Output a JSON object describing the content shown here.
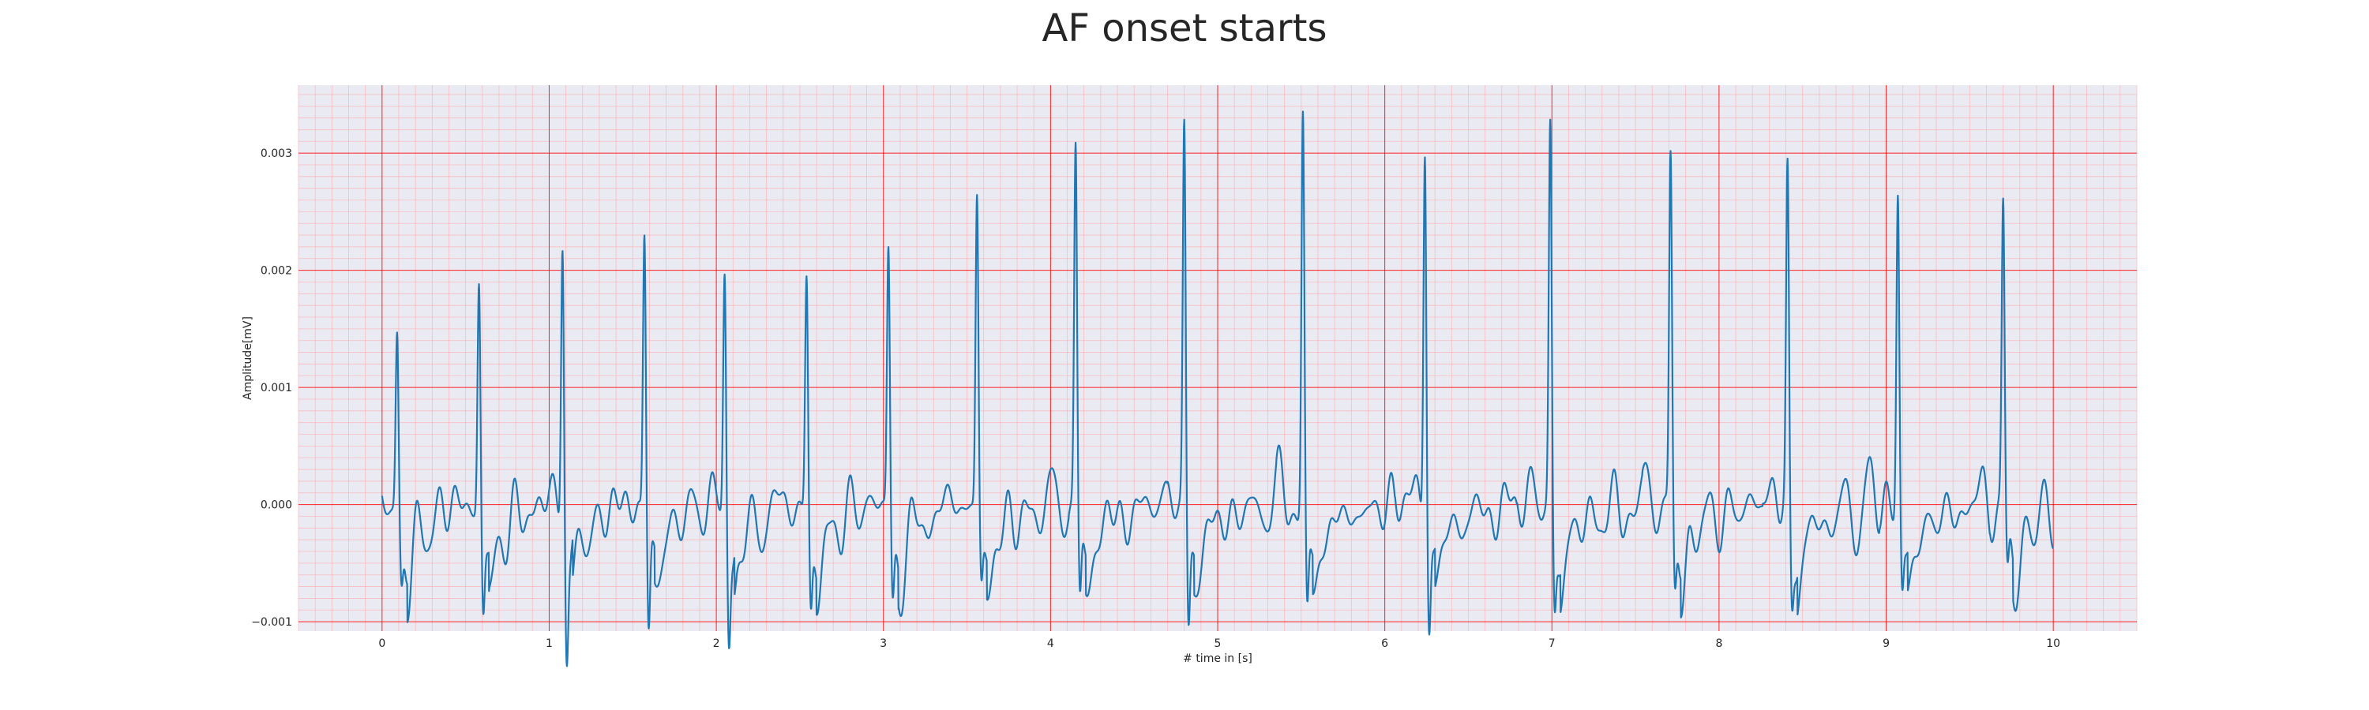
{
  "chart_data": {
    "type": "line",
    "title": "AF onset starts",
    "xlabel": "# time in [s]",
    "ylabel": "Amplitude[mV]",
    "xlim": [
      -0.5,
      10.5
    ],
    "ylim": [
      -0.00108,
      0.00358
    ],
    "x_ticks": [
      0,
      1,
      2,
      3,
      4,
      5,
      6,
      7,
      8,
      9,
      10
    ],
    "x_tick_labels": [
      "0",
      "1",
      "2",
      "3",
      "4",
      "5",
      "6",
      "7",
      "8",
      "9",
      "10"
    ],
    "y_ticks": [
      -0.001,
      0.0,
      0.001,
      0.002,
      0.003
    ],
    "y_tick_labels": [
      "−0.001",
      "0.000",
      "0.001",
      "0.002",
      "0.003"
    ],
    "grid": true,
    "minor_grid": true,
    "legend": "none",
    "colors": {
      "line": "#1f77b4",
      "major_grid": "#ff0000",
      "minor_grid": "#ffaaaa",
      "background": "#eaeaf2"
    },
    "series": [
      {
        "x_start": 0.0,
        "x_end": 10.0,
        "beats": [
          {
            "t": 0.09,
            "peak": 0.0015,
            "trough": -0.0005
          },
          {
            "t": 0.58,
            "peak": 0.002,
            "trough": -0.0007
          },
          {
            "t": 1.08,
            "peak": 0.00255,
            "trough": -0.0009
          },
          {
            "t": 1.57,
            "peak": 0.00247,
            "trough": -0.00087
          },
          {
            "t": 2.05,
            "peak": 0.00213,
            "trough": -0.0008
          },
          {
            "t": 2.54,
            "peak": 0.002,
            "trough": -0.00075
          },
          {
            "t": 3.03,
            "peak": 0.0023,
            "trough": -0.0006
          },
          {
            "t": 3.56,
            "peak": 0.0027,
            "trough": -0.0005
          },
          {
            "t": 4.15,
            "peak": 0.00305,
            "trough": -0.0007
          },
          {
            "t": 4.8,
            "peak": 0.0033,
            "trough": -0.00083
          },
          {
            "t": 5.51,
            "peak": 0.00335,
            "trough": -0.00082
          },
          {
            "t": 6.24,
            "peak": 0.0033,
            "trough": -0.00078
          },
          {
            "t": 6.99,
            "peak": 0.0032,
            "trough": -0.0007
          },
          {
            "t": 7.71,
            "peak": 0.00296,
            "trough": -0.00063
          },
          {
            "t": 8.41,
            "peak": 0.00282,
            "trough": -0.00058
          },
          {
            "t": 9.07,
            "peak": 0.0027,
            "trough": -0.00055
          },
          {
            "t": 9.7,
            "peak": 0.00256,
            "trough": -0.00048
          }
        ]
      }
    ]
  }
}
